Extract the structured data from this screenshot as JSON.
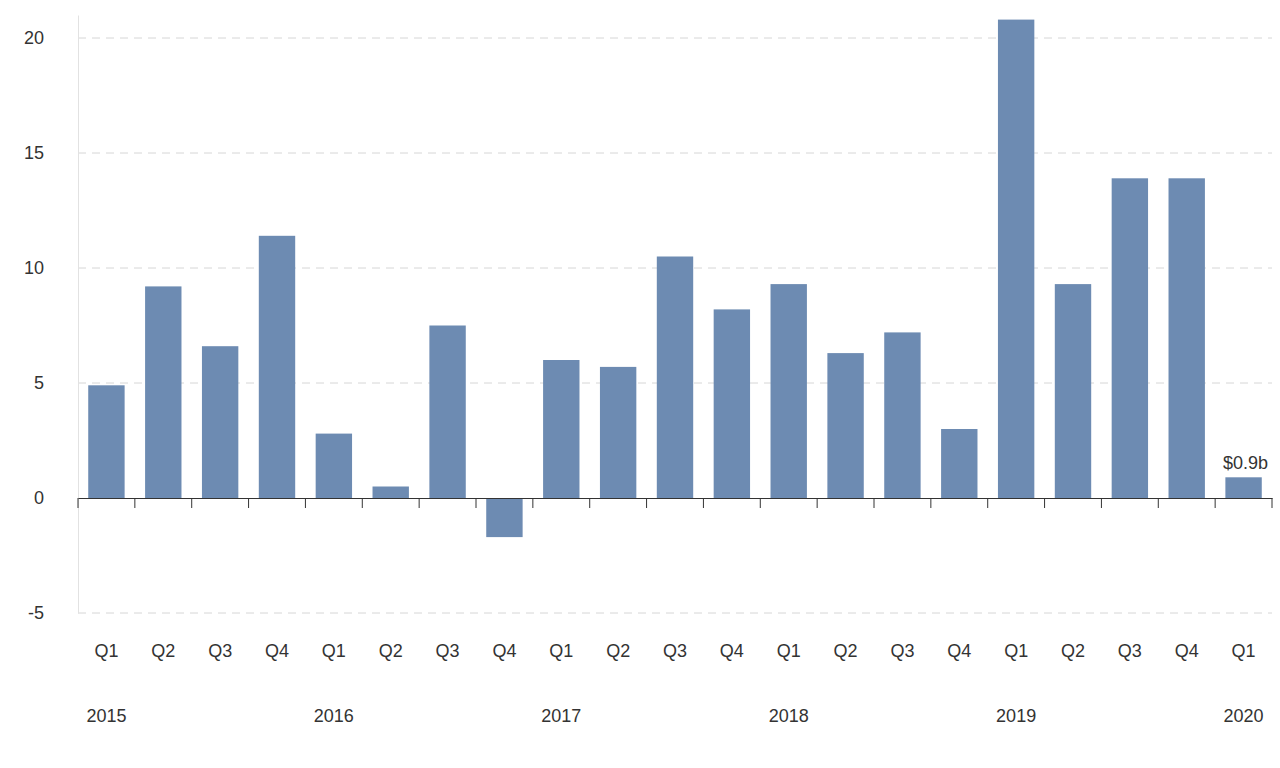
{
  "chart_data": {
    "type": "bar",
    "categories": [
      "Q1",
      "Q2",
      "Q3",
      "Q4",
      "Q1",
      "Q2",
      "Q3",
      "Q4",
      "Q1",
      "Q2",
      "Q3",
      "Q4",
      "Q1",
      "Q2",
      "Q3",
      "Q4",
      "Q1",
      "Q2",
      "Q3",
      "Q4",
      "Q1"
    ],
    "x_group_labels": [
      "2015",
      null,
      null,
      null,
      "2016",
      null,
      null,
      null,
      "2017",
      null,
      null,
      null,
      "2018",
      null,
      null,
      null,
      "2019",
      null,
      null,
      null,
      "2020"
    ],
    "values": [
      4.9,
      9.2,
      6.6,
      11.4,
      2.8,
      0.5,
      7.5,
      -1.7,
      6.0,
      5.7,
      10.5,
      8.2,
      9.3,
      6.3,
      7.2,
      3.0,
      20.8,
      9.3,
      13.9,
      13.9,
      0.9
    ],
    "color": "#6d8bb2",
    "ylim": [
      -5,
      21
    ],
    "yticks": [
      -5,
      0,
      5,
      10,
      15,
      20
    ],
    "grid": true,
    "annotations": [
      {
        "text": "$0.9b",
        "index": 20
      }
    ]
  }
}
